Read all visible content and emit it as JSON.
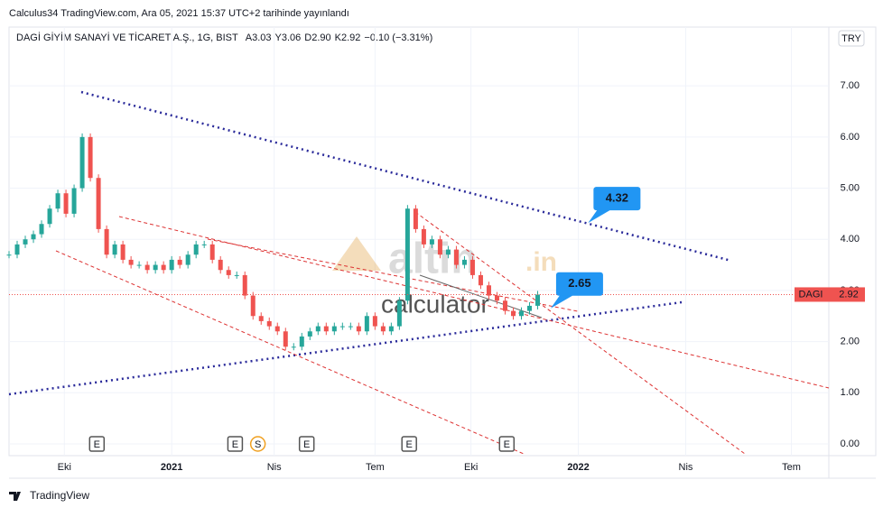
{
  "header": {
    "published": "Calculus34 TradingView.com, Ara 05, 2021 15:37 UTC+2 tarihinde yayınlandı",
    "symbol": "DAGİ GİYİM SANAYİ VE TİCARET A.Ş., 1G, BIST",
    "ohlc": [
      {
        "label": "A",
        "value": "3.03"
      },
      {
        "label": "Y",
        "value": "3.06"
      },
      {
        "label": "D",
        "value": "2.90"
      },
      {
        "label": "K",
        "value": "2.92"
      }
    ],
    "change": "−0.10 (−3.31%)",
    "currency": "TRY"
  },
  "footer": "TradingView",
  "watermark": {
    "brand": "altin",
    "suffix": ".in",
    "sub": "calculator"
  },
  "chart_data": {
    "type": "candlestick",
    "x": [
      0,
      5,
      10,
      15,
      20,
      25,
      30,
      35,
      40,
      45,
      50,
      55,
      60,
      65,
      70,
      75,
      80,
      85,
      90,
      95,
      100,
      105,
      110,
      115,
      120,
      125,
      130,
      135,
      140,
      145,
      150,
      155,
      160,
      165,
      170,
      175,
      180,
      185,
      190,
      195,
      200,
      205,
      210,
      215,
      220,
      225,
      230,
      235,
      240,
      245,
      250,
      255,
      260,
      265,
      270,
      275,
      280,
      285,
      290,
      295,
      300,
      305,
      310,
      315,
      320,
      325
    ],
    "values": [
      3.7,
      3.9,
      4.0,
      4.1,
      4.3,
      4.6,
      4.9,
      4.5,
      5.0,
      6.0,
      5.2,
      4.2,
      3.7,
      3.9,
      3.6,
      3.5,
      3.5,
      3.4,
      3.5,
      3.4,
      3.6,
      3.5,
      3.7,
      3.9,
      3.9,
      3.6,
      3.4,
      3.3,
      3.3,
      2.9,
      2.5,
      2.4,
      2.3,
      2.2,
      1.9,
      1.9,
      2.1,
      2.2,
      2.3,
      2.2,
      2.3,
      2.3,
      2.3,
      2.2,
      2.5,
      2.3,
      2.2,
      2.3,
      2.8,
      4.6,
      4.2,
      3.9,
      4.0,
      3.7,
      3.8,
      3.5,
      3.6,
      3.3,
      3.1,
      2.9,
      2.8,
      2.6,
      2.5,
      2.6,
      2.7,
      2.92
    ],
    "up_color": "#26a69a",
    "down_color": "#ef5350",
    "xlim": [
      0,
      504
    ],
    "xticks": [
      {
        "value": 34,
        "label": "Eki"
      },
      {
        "value": 100,
        "label": "2021"
      },
      {
        "value": 163,
        "label": "Nis"
      },
      {
        "value": 225,
        "label": "Tem"
      },
      {
        "value": 284,
        "label": "Eki"
      },
      {
        "value": 350,
        "label": "2022"
      },
      {
        "value": 416,
        "label": "Nis"
      },
      {
        "value": 481,
        "label": "Tem"
      }
    ],
    "ylim": [
      -0.23,
      8.15
    ],
    "yticks": [
      {
        "value": 0,
        "label": "0.00"
      },
      {
        "value": 1,
        "label": "1.00"
      },
      {
        "value": 2,
        "label": "2.00"
      },
      {
        "value": 3,
        "label": "3.00"
      },
      {
        "value": 4,
        "label": "4.00"
      },
      {
        "value": 5,
        "label": "5.00"
      },
      {
        "value": 6,
        "label": "6.00"
      },
      {
        "value": 7,
        "label": "7.00"
      }
    ],
    "grid": true,
    "callouts": [
      {
        "x": 356,
        "value": 4.32
      },
      {
        "x": 333,
        "value": 2.65
      }
    ],
    "last": {
      "name": "DAGI",
      "value": 2.92
    },
    "events": [
      {
        "x": 54,
        "text": "E"
      },
      {
        "x": 139,
        "text": "E"
      },
      {
        "x": 153,
        "text": "S"
      },
      {
        "x": 183,
        "text": "E"
      },
      {
        "x": 246,
        "text": "E"
      },
      {
        "x": 306,
        "text": "E"
      }
    ]
  }
}
